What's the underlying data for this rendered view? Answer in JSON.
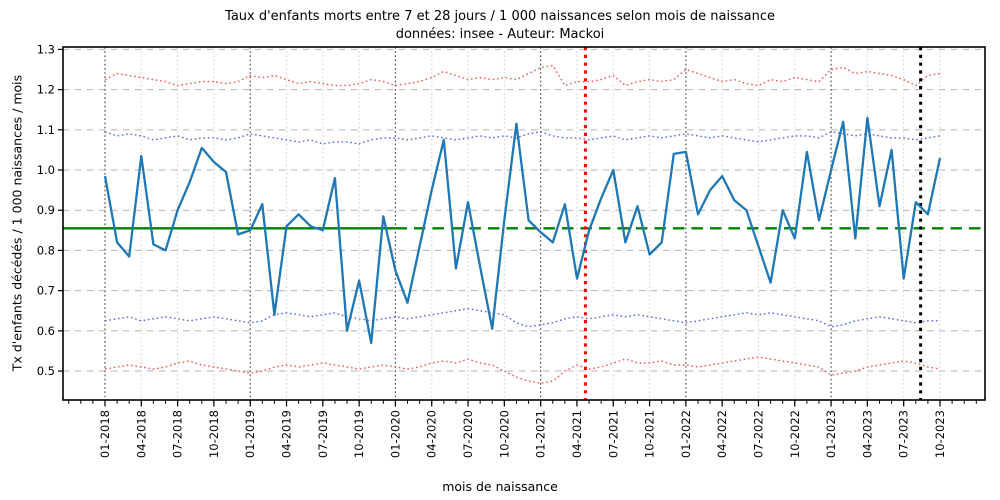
{
  "figure": {
    "title": "Taux d'enfants morts entre 7 et 28 jours / 1 000 naissances selon mois de naissance",
    "subtitle": "données: insee - Auteur: Mackoi",
    "xlabel": "mois de naissance",
    "ylabel": "Tx d'enfants décédés / 1 000 naissances / mois"
  },
  "chart_data": {
    "type": "line",
    "title": "Taux d'enfants morts entre 7 et 28 jours / 1 000 naissances selon mois de naissance",
    "subtitle": "données: insee - Auteur: Mackoi",
    "xlabel": "mois de naissance",
    "ylabel": "Tx d'enfants décédés / 1 000 naissances / mois",
    "ylim": [
      0.428,
      1.306
    ],
    "yticks": [
      0.5,
      0.6,
      0.7,
      0.8,
      0.9,
      1.0,
      1.1,
      1.2,
      1.3
    ],
    "grid": true,
    "legend": "none",
    "x_major_tick_every": 3,
    "x": [
      "01-2018",
      "02-2018",
      "03-2018",
      "04-2018",
      "05-2018",
      "06-2018",
      "07-2018",
      "08-2018",
      "09-2018",
      "10-2018",
      "11-2018",
      "12-2018",
      "01-2019",
      "02-2019",
      "03-2019",
      "04-2019",
      "05-2019",
      "06-2019",
      "07-2019",
      "08-2019",
      "09-2019",
      "10-2019",
      "11-2019",
      "12-2019",
      "01-2020",
      "02-2020",
      "03-2020",
      "04-2020",
      "05-2020",
      "06-2020",
      "07-2020",
      "08-2020",
      "09-2020",
      "10-2020",
      "11-2020",
      "12-2020",
      "01-2021",
      "02-2021",
      "03-2021",
      "04-2021",
      "05-2021",
      "06-2021",
      "07-2021",
      "08-2021",
      "09-2021",
      "10-2021",
      "11-2021",
      "12-2021",
      "01-2022",
      "02-2022",
      "03-2022",
      "04-2022",
      "05-2022",
      "06-2022",
      "07-2022",
      "08-2022",
      "09-2022",
      "10-2022",
      "11-2022",
      "12-2022",
      "01-2023",
      "02-2023",
      "03-2023",
      "04-2023",
      "05-2023",
      "06-2023",
      "07-2023",
      "08-2023",
      "09-2023",
      "10-2023"
    ],
    "series": [
      {
        "name": "taux-mensuel",
        "color": "#1f77b4",
        "style": "solid",
        "width": 2.3,
        "values": [
          0.985,
          0.82,
          0.785,
          1.035,
          0.815,
          0.8,
          0.9,
          0.97,
          1.055,
          1.02,
          0.995,
          0.84,
          0.85,
          0.915,
          0.64,
          0.86,
          0.89,
          0.86,
          0.85,
          0.98,
          0.6,
          0.725,
          0.57,
          0.885,
          0.75,
          0.67,
          0.81,
          0.95,
          1.075,
          0.755,
          0.92,
          0.76,
          0.605,
          0.875,
          1.115,
          0.875,
          0.845,
          0.82,
          0.915,
          0.73,
          0.85,
          0.93,
          1.0,
          0.82,
          0.91,
          0.79,
          0.82,
          1.04,
          1.045,
          0.89,
          0.95,
          0.985,
          0.925,
          0.9,
          0.81,
          0.72,
          0.9,
          0.83,
          1.045,
          0.875,
          1.0,
          1.12,
          0.83,
          1.13,
          0.91,
          1.05,
          0.73,
          0.92,
          0.89,
          1.03
        ]
      },
      {
        "name": "borne-superieure-rouge",
        "color": "#ee5555",
        "style": "dotted",
        "width": 1.4,
        "values": [
          1.225,
          1.24,
          1.235,
          1.23,
          1.225,
          1.22,
          1.21,
          1.215,
          1.22,
          1.22,
          1.215,
          1.22,
          1.235,
          1.23,
          1.235,
          1.225,
          1.215,
          1.22,
          1.215,
          1.21,
          1.21,
          1.215,
          1.225,
          1.22,
          1.21,
          1.215,
          1.22,
          1.23,
          1.245,
          1.235,
          1.225,
          1.23,
          1.225,
          1.23,
          1.225,
          1.24,
          1.255,
          1.26,
          1.21,
          1.22,
          1.22,
          1.225,
          1.235,
          1.21,
          1.22,
          1.225,
          1.22,
          1.225,
          1.25,
          1.24,
          1.23,
          1.22,
          1.225,
          1.215,
          1.21,
          1.225,
          1.22,
          1.23,
          1.225,
          1.22,
          1.25,
          1.255,
          1.24,
          1.245,
          1.24,
          1.235,
          1.225,
          1.21,
          1.235,
          1.24
        ]
      },
      {
        "name": "borne-superieure-bleue",
        "color": "#5566dd",
        "style": "dotted",
        "width": 1.4,
        "values": [
          1.095,
          1.085,
          1.09,
          1.085,
          1.075,
          1.08,
          1.085,
          1.075,
          1.08,
          1.08,
          1.075,
          1.08,
          1.09,
          1.085,
          1.08,
          1.075,
          1.07,
          1.075,
          1.065,
          1.07,
          1.07,
          1.065,
          1.075,
          1.08,
          1.08,
          1.075,
          1.08,
          1.085,
          1.08,
          1.075,
          1.08,
          1.085,
          1.08,
          1.085,
          1.08,
          1.09,
          1.095,
          1.085,
          1.08,
          1.08,
          1.075,
          1.08,
          1.085,
          1.075,
          1.08,
          1.085,
          1.08,
          1.085,
          1.09,
          1.085,
          1.08,
          1.085,
          1.08,
          1.075,
          1.07,
          1.075,
          1.08,
          1.085,
          1.085,
          1.08,
          1.095,
          1.09,
          1.085,
          1.09,
          1.085,
          1.08,
          1.08,
          1.075,
          1.08,
          1.085
        ]
      },
      {
        "name": "borne-inferieure-bleue",
        "color": "#5566dd",
        "style": "dotted",
        "width": 1.4,
        "values": [
          0.625,
          0.63,
          0.635,
          0.625,
          0.63,
          0.635,
          0.63,
          0.625,
          0.63,
          0.635,
          0.63,
          0.625,
          0.62,
          0.625,
          0.64,
          0.645,
          0.64,
          0.635,
          0.64,
          0.645,
          0.635,
          0.63,
          0.625,
          0.63,
          0.635,
          0.63,
          0.635,
          0.64,
          0.645,
          0.65,
          0.655,
          0.65,
          0.645,
          0.64,
          0.62,
          0.61,
          0.615,
          0.62,
          0.63,
          0.635,
          0.63,
          0.635,
          0.64,
          0.635,
          0.64,
          0.635,
          0.63,
          0.625,
          0.62,
          0.625,
          0.63,
          0.635,
          0.64,
          0.645,
          0.64,
          0.645,
          0.64,
          0.635,
          0.63,
          0.625,
          0.61,
          0.615,
          0.625,
          0.63,
          0.635,
          0.63,
          0.625,
          0.62,
          0.625,
          0.625
        ]
      },
      {
        "name": "borne-inferieure-rouge",
        "color": "#ee5555",
        "style": "dotted",
        "width": 1.4,
        "values": [
          0.505,
          0.51,
          0.515,
          0.51,
          0.505,
          0.51,
          0.52,
          0.525,
          0.515,
          0.51,
          0.505,
          0.5,
          0.495,
          0.5,
          0.51,
          0.515,
          0.51,
          0.515,
          0.52,
          0.515,
          0.51,
          0.505,
          0.51,
          0.515,
          0.51,
          0.505,
          0.51,
          0.52,
          0.525,
          0.52,
          0.53,
          0.52,
          0.515,
          0.5,
          0.485,
          0.475,
          0.47,
          0.475,
          0.5,
          0.515,
          0.505,
          0.51,
          0.52,
          0.53,
          0.52,
          0.52,
          0.525,
          0.515,
          0.515,
          0.51,
          0.515,
          0.52,
          0.525,
          0.53,
          0.535,
          0.53,
          0.525,
          0.52,
          0.515,
          0.51,
          0.49,
          0.495,
          0.5,
          0.51,
          0.515,
          0.52,
          0.525,
          0.52,
          0.51,
          0.505
        ]
      }
    ],
    "mean_line": {
      "value": 0.855,
      "color": "#008000",
      "solid_until_index": 24,
      "width": 2.3
    },
    "vlines": [
      {
        "name": "vline-rouge",
        "month_index": 39.7,
        "color": "#ff0000"
      },
      {
        "name": "vline-noire",
        "month_index": 67.4,
        "color": "#000000"
      }
    ],
    "gridline_colors": {
      "horizontal": "#b3b3b3",
      "quarter": "#d2d2d2",
      "january": "#4d4d4d"
    }
  }
}
